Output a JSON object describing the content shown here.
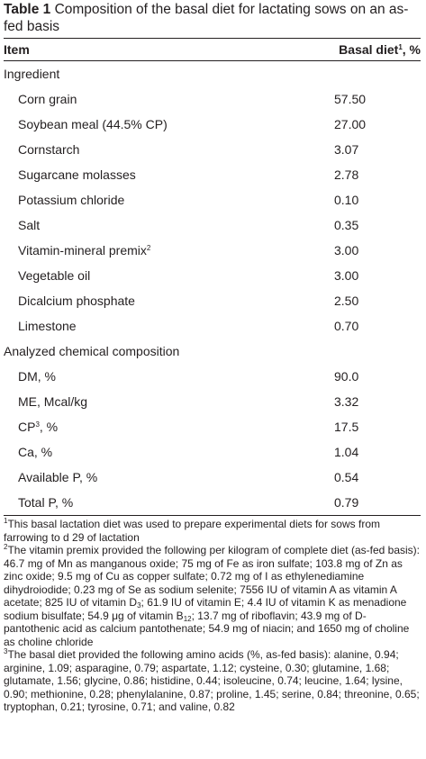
{
  "caption": {
    "label": "Table 1",
    "text": "Composition of the basal diet for lactating sows on an as-fed basis"
  },
  "header": {
    "item": "Item",
    "basal_prefix": "Basal diet",
    "basal_sup": "1",
    "basal_suffix": ", %"
  },
  "sections": {
    "ingredient": "Ingredient",
    "analyzed": "Analyzed chemical composition"
  },
  "ingredients": [
    {
      "name": "Corn grain",
      "value": "57.50"
    },
    {
      "name": "Soybean meal (44.5% CP)",
      "value": "27.00"
    },
    {
      "name": "Cornstarch",
      "value": "3.07"
    },
    {
      "name": "Sugarcane molasses",
      "value": "2.78"
    },
    {
      "name": "Potassium chloride",
      "value": "0.10"
    },
    {
      "name": "Salt",
      "value": "0.35"
    },
    {
      "name": "Vitamin-mineral premix",
      "sup": "2",
      "value": "3.00"
    },
    {
      "name": "Vegetable oil",
      "value": "3.00"
    },
    {
      "name": "Dicalcium phosphate",
      "value": "2.50"
    },
    {
      "name": "Limestone",
      "value": "0.70"
    }
  ],
  "analyzed": [
    {
      "name": "DM, %",
      "value": "90.0"
    },
    {
      "name": "ME, Mcal/kg",
      "value": "3.32"
    },
    {
      "name": "CP",
      "sup": "3",
      "suffix": ", %",
      "value": "17.5"
    },
    {
      "name": "Ca, %",
      "value": "1.04"
    },
    {
      "name": "Available P, %",
      "value": "0.54"
    },
    {
      "name": "Total P, %",
      "value": "0.79"
    }
  ],
  "footnotes": {
    "n1": {
      "sup": "1",
      "text": "This basal lactation diet was used to prepare experimental diets for sows from farrowing to d 29 of lactation"
    },
    "n2": {
      "sup": "2",
      "t1": "The vitamin premix provided the following per kilogram of complete diet (as-fed basis): 46.7 mg of Mn as manganous oxide; 75 mg of Fe as iron sulfate; 103.8 mg of Zn as zinc oxide; 9.5 mg of Cu as copper sulfate; 0.72 mg of I as ethylenediamine dihydroiodide; 0.23 mg of Se as sodium selenite; 7556 IU of vitamin A as vitamin A acetate; 825 IU of vitamin D",
      "s1": "3",
      "t2": "; 61.9 IU of vitamin E; 4.4 IU of vitamin K as menadione sodium bisulfate; 54.9 μg of vitamin B",
      "s2": "12",
      "t3": "; 13.7 mg of riboflavin; 43.9 mg of D-pantothenic acid as calcium pantothenate; 54.9 mg of niacin; and 1650 mg of choline as choline chloride"
    },
    "n3": {
      "sup": "3",
      "text": "The basal diet provided the following amino acids (%, as-fed basis): alanine, 0.94; arginine, 1.09; asparagine, 0.79; aspartate, 1.12; cysteine, 0.30; glutamine, 1.68; glutamate, 1.56; glycine, 0.86; histidine, 0.44; isoleucine, 0.74; leucine, 1.64; lysine, 0.90; methionine, 0.28; phenylalanine, 0.87; proline, 1.45; serine, 0.84; threonine, 0.65; tryptophan, 0.21; tyrosine, 0.71; and valine, 0.82"
    }
  }
}
